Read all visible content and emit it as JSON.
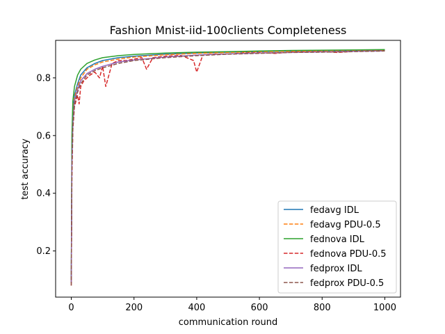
{
  "chart_data": {
    "type": "line",
    "title": "Fashion Mnist-iid-100clients Completeness",
    "xlabel": "communication round",
    "ylabel": "test accuracy",
    "xlim": [
      -50,
      1050
    ],
    "ylim": [
      0.04,
      0.93
    ],
    "xticks": [
      0,
      200,
      400,
      600,
      800,
      1000
    ],
    "yticks": [
      0.2,
      0.4,
      0.6,
      0.8
    ],
    "grid": false,
    "legend_position": "lower right",
    "series": [
      {
        "name": "fedavg IDL",
        "color": "#1f77b4",
        "dashed": false,
        "x": [
          0,
          2,
          5,
          10,
          20,
          30,
          50,
          75,
          100,
          150,
          200,
          300,
          400,
          500,
          600,
          700,
          800,
          900,
          1000
        ],
        "y": [
          0.09,
          0.55,
          0.68,
          0.74,
          0.78,
          0.81,
          0.835,
          0.85,
          0.86,
          0.87,
          0.875,
          0.882,
          0.886,
          0.889,
          0.891,
          0.893,
          0.894,
          0.895,
          0.896
        ]
      },
      {
        "name": "fedavg PDU-0.5",
        "color": "#ff7f0e",
        "dashed": true,
        "x": [
          0,
          2,
          5,
          10,
          20,
          30,
          50,
          75,
          100,
          150,
          200,
          300,
          400,
          500,
          600,
          700,
          800,
          900,
          1000
        ],
        "y": [
          0.09,
          0.52,
          0.66,
          0.73,
          0.77,
          0.8,
          0.83,
          0.845,
          0.855,
          0.865,
          0.872,
          0.88,
          0.885,
          0.888,
          0.891,
          0.892,
          0.894,
          0.895,
          0.897
        ]
      },
      {
        "name": "fednova IDL",
        "color": "#2ca02c",
        "dashed": false,
        "x": [
          0,
          2,
          5,
          10,
          20,
          30,
          50,
          75,
          100,
          150,
          200,
          300,
          400,
          500,
          600,
          700,
          800,
          900,
          1000
        ],
        "y": [
          0.1,
          0.6,
          0.72,
          0.77,
          0.81,
          0.83,
          0.85,
          0.862,
          0.87,
          0.877,
          0.881,
          0.886,
          0.889,
          0.891,
          0.893,
          0.895,
          0.896,
          0.897,
          0.898
        ]
      },
      {
        "name": "fednova PDU-0.5",
        "color": "#d62728",
        "dashed": true,
        "x": [
          0,
          2,
          5,
          10,
          15,
          20,
          25,
          30,
          40,
          50,
          60,
          75,
          90,
          100,
          110,
          130,
          150,
          175,
          200,
          225,
          240,
          260,
          300,
          350,
          390,
          400,
          420,
          450,
          500,
          550,
          600,
          650,
          700,
          750,
          800,
          850,
          900,
          950,
          1000
        ],
        "y": [
          0.08,
          0.45,
          0.62,
          0.7,
          0.72,
          0.74,
          0.71,
          0.77,
          0.79,
          0.8,
          0.81,
          0.82,
          0.8,
          0.84,
          0.77,
          0.85,
          0.86,
          0.86,
          0.865,
          0.87,
          0.83,
          0.87,
          0.875,
          0.878,
          0.86,
          0.82,
          0.88,
          0.882,
          0.883,
          0.886,
          0.887,
          0.885,
          0.889,
          0.89,
          0.891,
          0.888,
          0.892,
          0.893,
          0.894
        ]
      },
      {
        "name": "fedprox IDL",
        "color": "#9467bd",
        "dashed": false,
        "x": [
          0,
          2,
          5,
          10,
          20,
          30,
          50,
          75,
          100,
          150,
          200,
          300,
          400,
          500,
          600,
          700,
          800,
          900,
          1000
        ],
        "y": [
          0.09,
          0.5,
          0.64,
          0.72,
          0.76,
          0.79,
          0.815,
          0.83,
          0.84,
          0.855,
          0.862,
          0.872,
          0.879,
          0.883,
          0.886,
          0.888,
          0.89,
          0.892,
          0.893
        ]
      },
      {
        "name": "fedprox PDU-0.5",
        "color": "#8c564b",
        "dashed": true,
        "x": [
          0,
          2,
          5,
          10,
          20,
          30,
          50,
          75,
          100,
          150,
          200,
          300,
          400,
          500,
          600,
          700,
          800,
          900,
          1000
        ],
        "y": [
          0.08,
          0.48,
          0.63,
          0.71,
          0.75,
          0.78,
          0.81,
          0.825,
          0.835,
          0.85,
          0.86,
          0.87,
          0.877,
          0.882,
          0.885,
          0.888,
          0.889,
          0.891,
          0.893
        ]
      }
    ]
  }
}
